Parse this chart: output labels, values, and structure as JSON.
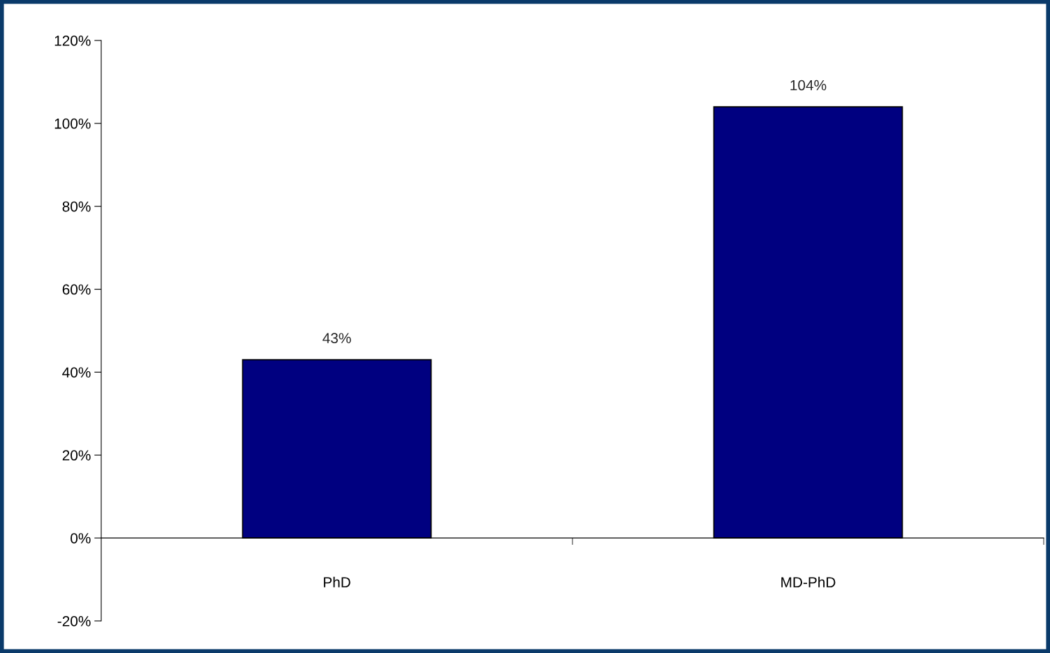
{
  "chart_data": {
    "type": "bar",
    "categories": [
      "PhD",
      "MD-PhD"
    ],
    "values": [
      43,
      104
    ],
    "value_labels": [
      "43%",
      "104%"
    ],
    "color": "#000080",
    "ylim": [
      -20,
      120
    ],
    "yticks": [
      {
        "value": -20,
        "label": "-20%"
      },
      {
        "value": 0,
        "label": "0%"
      },
      {
        "value": 20,
        "label": "20%"
      },
      {
        "value": 40,
        "label": "40%"
      },
      {
        "value": 60,
        "label": "60%"
      },
      {
        "value": 80,
        "label": "80%"
      },
      {
        "value": 100,
        "label": "100%"
      },
      {
        "value": 120,
        "label": "120%"
      }
    ],
    "legend": false
  }
}
